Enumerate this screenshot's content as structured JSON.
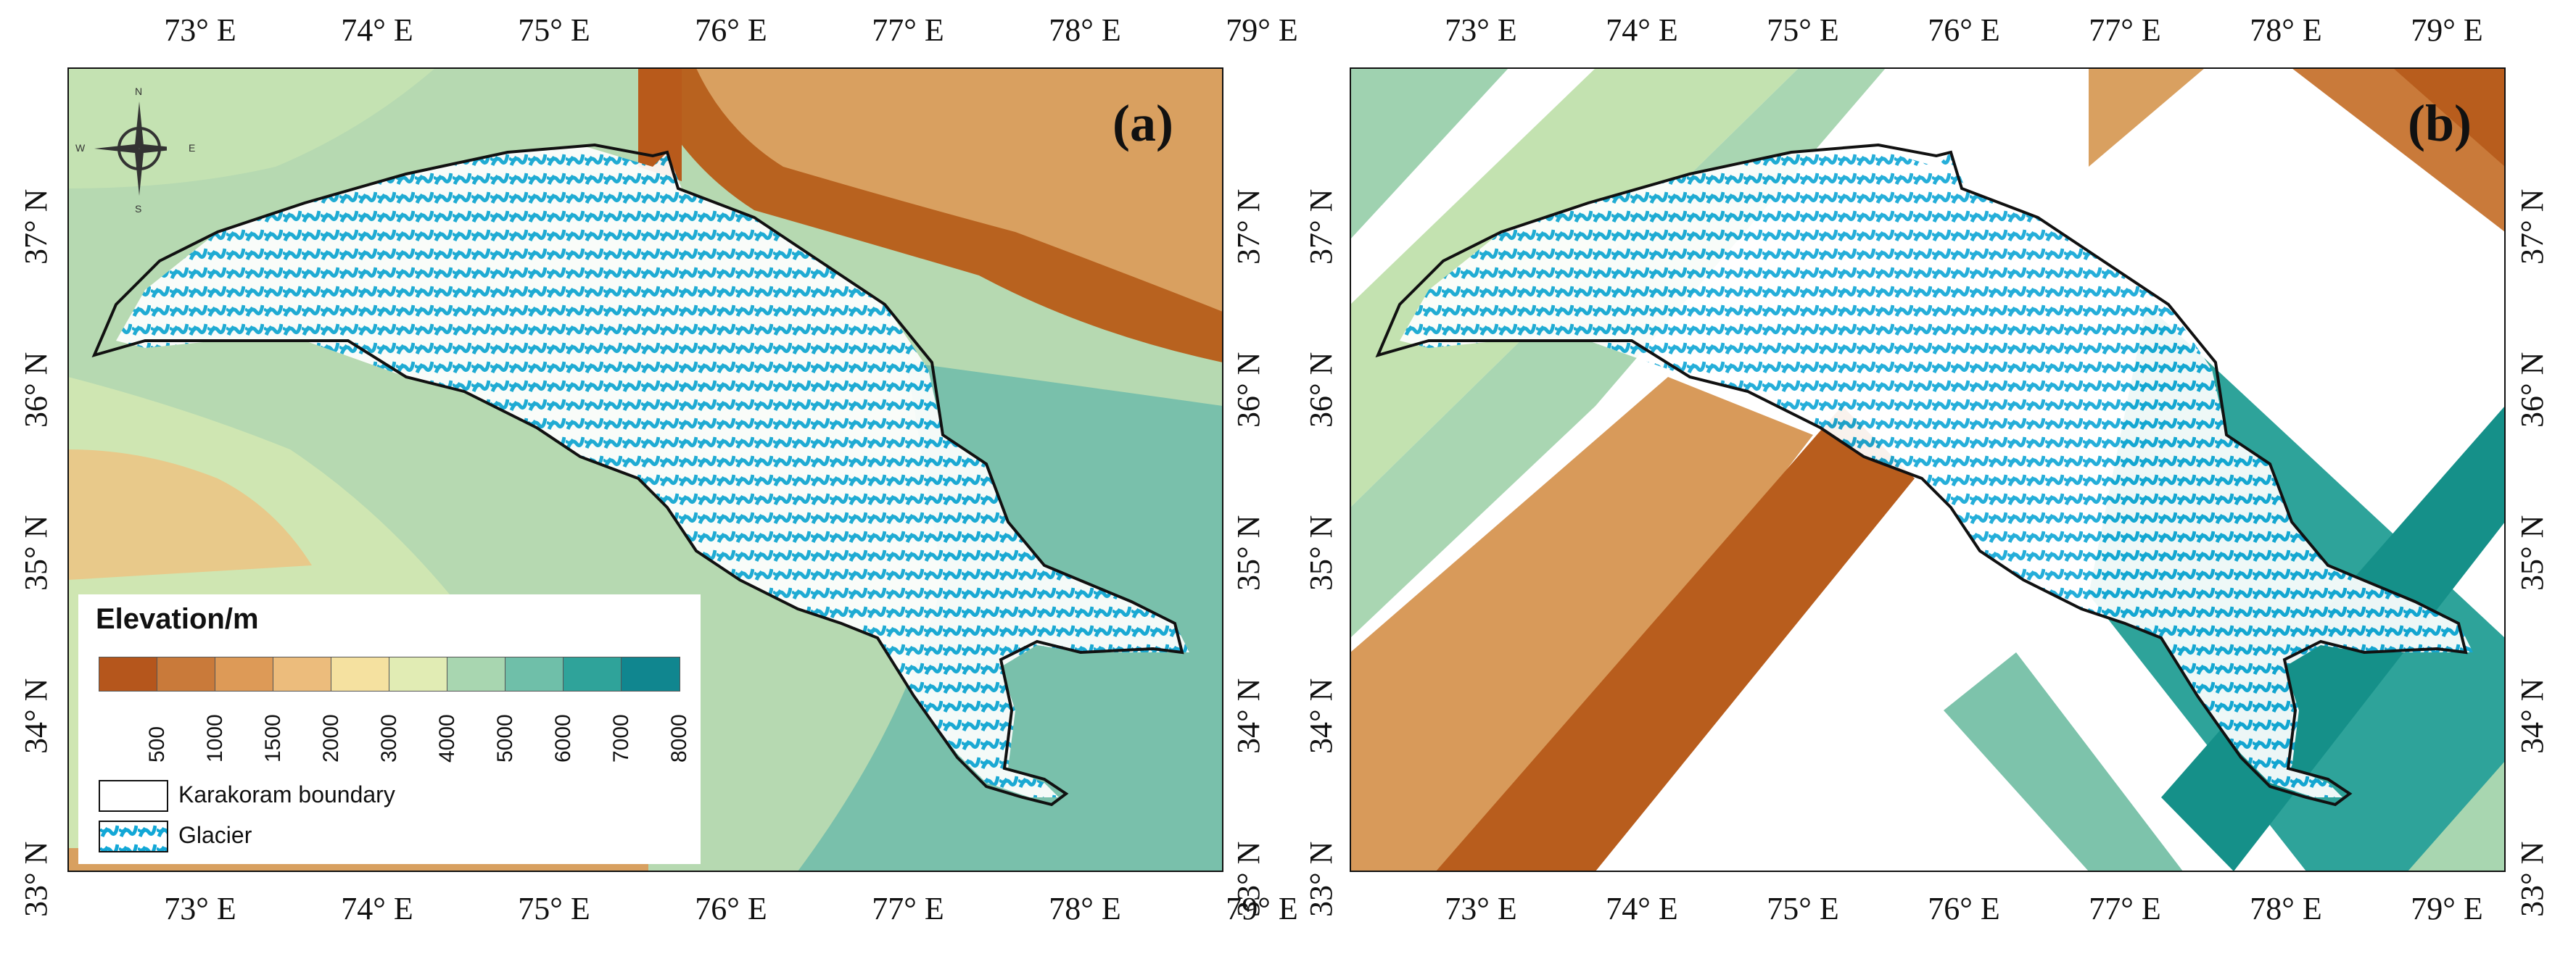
{
  "panels": [
    {
      "id": "a",
      "label": "(a)",
      "x_ticks": [
        "73° E",
        "74° E",
        "75° E",
        "76° E",
        "77° E",
        "78° E",
        "79° E"
      ],
      "y_ticks": [
        "37° N",
        "36° N",
        "35° N",
        "34° N",
        "33° N"
      ]
    },
    {
      "id": "b",
      "label": "(b)",
      "x_ticks": [
        "73° E",
        "74° E",
        "75° E",
        "76° E",
        "77° E",
        "78° E",
        "79° E"
      ],
      "y_ticks": [
        "37° N",
        "36° N",
        "35° N",
        "34° N",
        "33° N"
      ]
    }
  ],
  "legend": {
    "title": "Elevation/m",
    "breaks": [
      "500",
      "1000",
      "1500",
      "2000",
      "3000",
      "4000",
      "5000",
      "6000",
      "7000",
      "8000"
    ],
    "colors": [
      "#b5561c",
      "#c97a3a",
      "#dd9a57",
      "#ecbc7c",
      "#f5e1a0",
      "#e1ecb4",
      "#a8d6b0",
      "#6fbfa9",
      "#2fa39a",
      "#10868f"
    ],
    "boundary_label": "Karakoram boundary",
    "glacier_label": "Glacier",
    "glacier_color": "#12a7d6"
  },
  "compass": {
    "n": "N",
    "s": "S",
    "e": "E",
    "w": "W"
  }
}
